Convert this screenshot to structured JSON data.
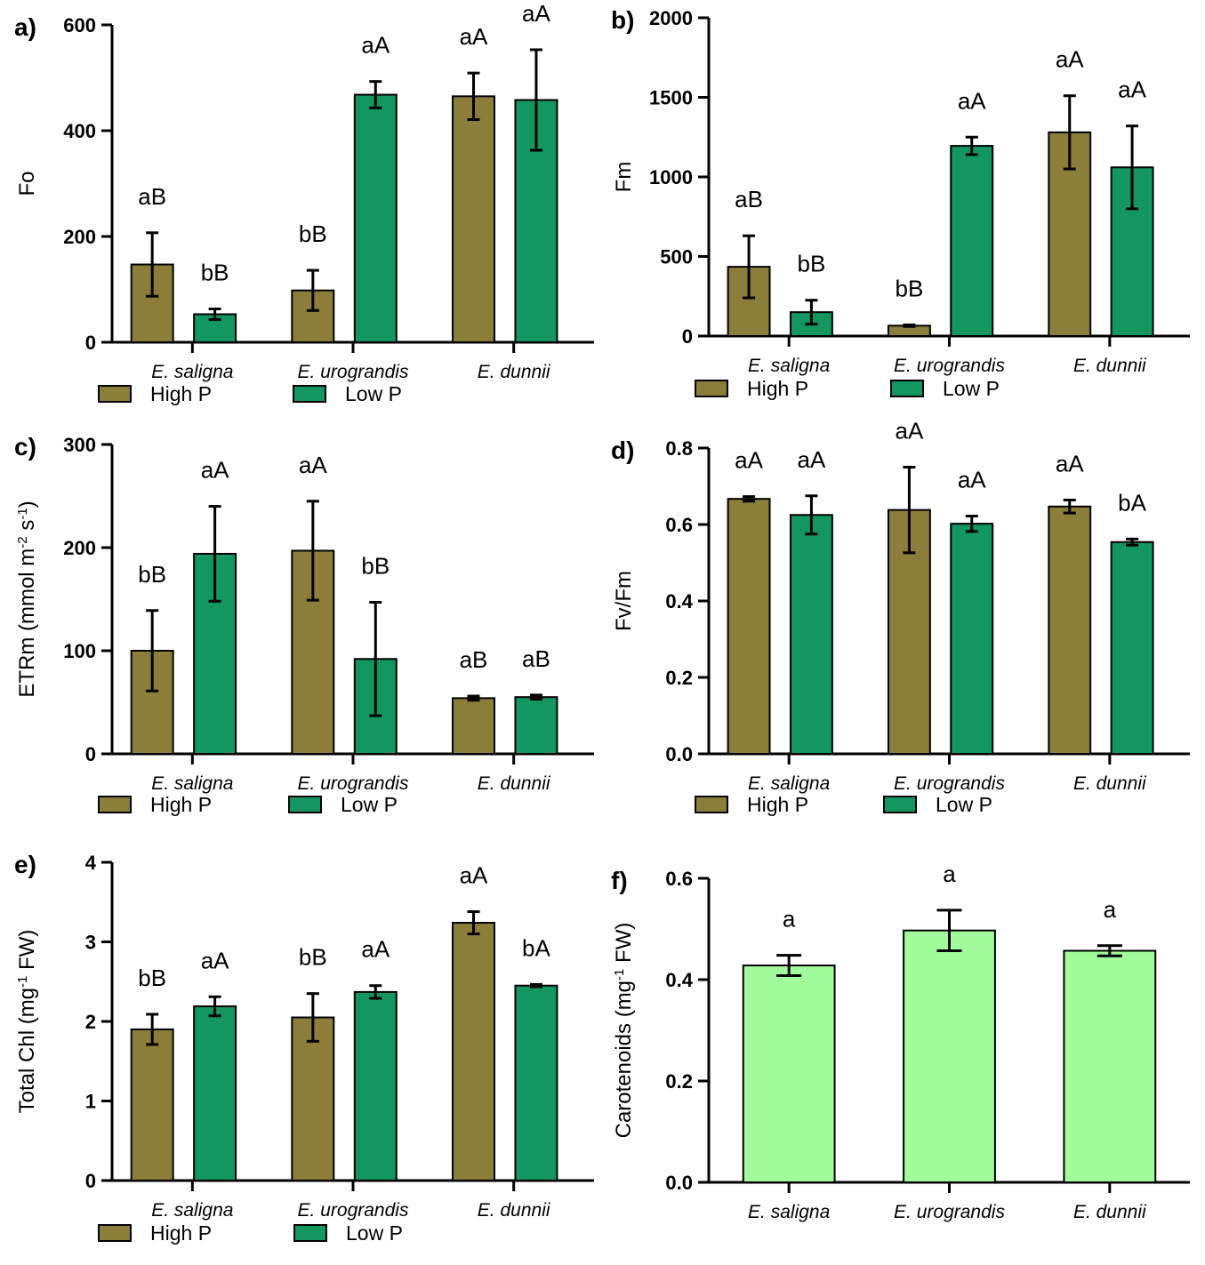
{
  "colors": {
    "high_p": "#8b7d3a",
    "low_p": "#13965f",
    "carotenoid": "#a3fc9c",
    "axis": "#000000"
  },
  "legend": {
    "high_p": "High P",
    "low_p": "Low P"
  },
  "chart_data": [
    {
      "panel": "a)",
      "type": "bar",
      "ylabel": "Fo",
      "ylim": [
        0,
        600
      ],
      "yticks": [
        "0",
        "200",
        "400",
        "600"
      ],
      "categories": [
        "E. saligna",
        "E. urograndis",
        "E. dunnii"
      ],
      "legend": true,
      "series": [
        {
          "name": "High P",
          "color_key": "high_p",
          "values": [
            147,
            98,
            465
          ],
          "errors": [
            60,
            38,
            44
          ],
          "labels": [
            "aB",
            "bB",
            "aA"
          ]
        },
        {
          "name": "Low P",
          "color_key": "low_p",
          "values": [
            53,
            468,
            458
          ],
          "errors": [
            10,
            25,
            95
          ],
          "labels": [
            "bB",
            "aA",
            "aA"
          ]
        }
      ]
    },
    {
      "panel": "b)",
      "type": "bar",
      "ylabel": "Fm",
      "ylim": [
        0,
        2000
      ],
      "yticks": [
        "0",
        "500",
        "1000",
        "1500",
        "2000"
      ],
      "categories": [
        "E. saligna",
        "E. urograndis",
        "E. dunnii"
      ],
      "legend": true,
      "series": [
        {
          "name": "High P",
          "color_key": "high_p",
          "values": [
            435,
            65,
            1280
          ],
          "errors": [
            195,
            5,
            230
          ],
          "labels": [
            "aB",
            "bB",
            "aA"
          ]
        },
        {
          "name": "Low P",
          "color_key": "low_p",
          "values": [
            150,
            1195,
            1060
          ],
          "errors": [
            75,
            55,
            260
          ],
          "labels": [
            "bB",
            "aA",
            "aA"
          ]
        }
      ]
    },
    {
      "panel": "c)",
      "type": "bar",
      "ylabel": "ETRm (mmol m",
      "ylabel_sup1": "-2",
      "ylabel_mid": " s",
      "ylabel_sup2": "-1",
      "ylabel_end": ")",
      "ylim": [
        0,
        300
      ],
      "yticks": [
        "0",
        "100",
        "200",
        "300"
      ],
      "categories": [
        "E. saligna",
        "E. urograndis",
        "E. dunnii"
      ],
      "legend": true,
      "series": [
        {
          "name": "High P",
          "color_key": "high_p",
          "values": [
            100,
            197,
            54
          ],
          "errors": [
            39,
            48,
            2
          ],
          "labels": [
            "bB",
            "aA",
            "aB"
          ]
        },
        {
          "name": "Low P",
          "color_key": "low_p",
          "values": [
            194,
            92,
            55
          ],
          "errors": [
            46,
            55,
            2
          ],
          "labels": [
            "aA",
            "bB",
            "aB"
          ]
        }
      ]
    },
    {
      "panel": "d)",
      "type": "bar",
      "ylabel": "Fv/Fm",
      "ylim": [
        0,
        0.8
      ],
      "yticks": [
        "0.0",
        "0.2",
        "0.4",
        "0.6",
        "0.8"
      ],
      "categories": [
        "E. saligna",
        "E. urograndis",
        "E. dunnii"
      ],
      "legend": true,
      "series": [
        {
          "name": "High P",
          "color_key": "high_p",
          "values": [
            0.667,
            0.638,
            0.647
          ],
          "errors": [
            0.006,
            0.112,
            0.017
          ],
          "labels": [
            "aA",
            "aA",
            "aA"
          ]
        },
        {
          "name": "Low P",
          "color_key": "low_p",
          "values": [
            0.625,
            0.602,
            0.554
          ],
          "errors": [
            0.05,
            0.02,
            0.008
          ],
          "labels": [
            "aA",
            "aA",
            "bA"
          ]
        }
      ]
    },
    {
      "panel": "e)",
      "type": "bar",
      "ylabel": "Total Chl (mg",
      "ylabel_sup1": "-1",
      "ylabel_mid": " FW)",
      "ylabel_sup2": "",
      "ylabel_end": "",
      "ylim": [
        0,
        4
      ],
      "yticks": [
        "0",
        "1",
        "2",
        "3",
        "4"
      ],
      "categories": [
        "E. saligna",
        "E. urograndis",
        "E. dunnii"
      ],
      "legend": true,
      "series": [
        {
          "name": "High P",
          "color_key": "high_p",
          "values": [
            1.9,
            2.05,
            3.24
          ],
          "errors": [
            0.19,
            0.3,
            0.14
          ],
          "labels": [
            "bB",
            "bB",
            "aA"
          ]
        },
        {
          "name": "Low P",
          "color_key": "low_p",
          "values": [
            2.19,
            2.37,
            2.45
          ],
          "errors": [
            0.12,
            0.08,
            0.015
          ],
          "labels": [
            "aA",
            "aA",
            "bA"
          ]
        }
      ]
    },
    {
      "panel": "f)",
      "type": "bar",
      "ylabel": "Carotenoids (mg",
      "ylabel_sup1": "-1",
      "ylabel_mid": " FW)",
      "ylabel_sup2": "",
      "ylabel_end": "",
      "ylim": [
        0,
        0.6
      ],
      "yticks": [
        "0.0",
        "0.2",
        "0.4",
        "0.6"
      ],
      "categories": [
        "E. saligna",
        "E. urograndis",
        "E. dunnii"
      ],
      "legend": false,
      "series": [
        {
          "name": "",
          "color_key": "carotenoid",
          "values": [
            0.428,
            0.497,
            0.457
          ],
          "errors": [
            0.02,
            0.04,
            0.01
          ],
          "labels": [
            "a",
            "a",
            "a"
          ]
        }
      ]
    }
  ]
}
